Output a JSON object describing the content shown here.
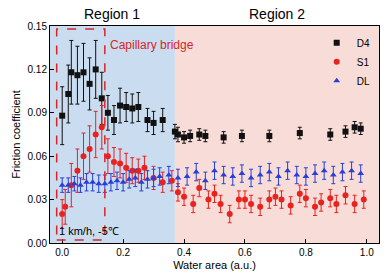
{
  "chart_data": {
    "type": "scatter",
    "x_label": "Water area (a.u.)",
    "y_label": "Friction coefficient",
    "xlim": [
      -0.04,
      1.04
    ],
    "ylim": [
      0,
      0.15
    ],
    "xticks": [
      {
        "value": 0,
        "label": "0.0"
      },
      0.2,
      0.4,
      0.6,
      0.8,
      {
        "value": 1,
        "label": "1.0"
      }
    ],
    "yticks": [
      {
        "value": 0,
        "label": "0.00"
      },
      {
        "value": 0.03,
        "label": "0.03"
      },
      {
        "value": 0.06,
        "label": "0.06"
      },
      {
        "value": 0.09,
        "label": "0.09"
      },
      {
        "value": 0.12,
        "label": "0.12"
      },
      {
        "value": 0.15,
        "label": "0.15"
      }
    ],
    "legend": "upper right",
    "grid": false,
    "regions": [
      {
        "label": "Region 1",
        "x0": -0.04,
        "x1": 0.37,
        "color": "#c9dcf0"
      },
      {
        "label": "Region 2",
        "x0": 0.37,
        "x1": 1.04,
        "color": "#f7dcd8"
      }
    ],
    "highlight": {
      "label": "Capillary bridge",
      "x0": -0.018,
      "x1": 0.14,
      "y0": 0.002,
      "y1": 0.148,
      "color": "#d62728"
    },
    "note": "1 km/h, -5℃",
    "series": [
      {
        "name": "D4",
        "color": "#111111",
        "marker": "square",
        "x": [
          0.0,
          0.02,
          0.03,
          0.05,
          0.07,
          0.09,
          0.11,
          0.13,
          0.15,
          0.17,
          0.19,
          0.21,
          0.23,
          0.25,
          0.28,
          0.3,
          0.33,
          0.37,
          0.38,
          0.4,
          0.42,
          0.45,
          0.47,
          0.53,
          0.59,
          0.68,
          0.78,
          0.88,
          0.93,
          0.96,
          0.98
        ],
        "values": [
          0.088,
          0.103,
          0.118,
          0.116,
          0.118,
          0.11,
          0.12,
          0.1,
          0.09,
          0.085,
          0.095,
          0.094,
          0.093,
          0.094,
          0.085,
          0.083,
          0.085,
          0.077,
          0.075,
          0.073,
          0.074,
          0.075,
          0.074,
          0.073,
          0.074,
          0.074,
          0.076,
          0.075,
          0.077,
          0.08,
          0.079
        ],
        "error": [
          0.02,
          0.02,
          0.022,
          0.02,
          0.02,
          0.018,
          0.02,
          0.018,
          0.012,
          0.01,
          0.012,
          0.01,
          0.01,
          0.01,
          0.008,
          0.008,
          0.008,
          0.005,
          0.005,
          0.004,
          0.004,
          0.004,
          0.004,
          0.004,
          0.004,
          0.004,
          0.004,
          0.004,
          0.004,
          0.004,
          0.004
        ]
      },
      {
        "name": "S1",
        "color": "#e8231f",
        "marker": "circle",
        "x": [
          0.0,
          0.01,
          0.03,
          0.05,
          0.07,
          0.09,
          0.11,
          0.13,
          0.15,
          0.17,
          0.19,
          0.21,
          0.23,
          0.25,
          0.27,
          0.3,
          0.33,
          0.36,
          0.38,
          0.4,
          0.43,
          0.45,
          0.48,
          0.5,
          0.52,
          0.55,
          0.58,
          0.6,
          0.62,
          0.65,
          0.68,
          0.7,
          0.72,
          0.75,
          0.78,
          0.8,
          0.83,
          0.85,
          0.88,
          0.9,
          0.93,
          0.96,
          0.99
        ],
        "values": [
          0.02,
          0.025,
          0.04,
          0.05,
          0.06,
          0.065,
          0.075,
          0.08,
          0.06,
          0.056,
          0.055,
          0.052,
          0.05,
          0.05,
          0.052,
          0.045,
          0.042,
          0.043,
          0.035,
          0.032,
          0.027,
          0.038,
          0.03,
          0.034,
          0.027,
          0.02,
          0.03,
          0.03,
          0.027,
          0.025,
          0.03,
          0.032,
          0.03,
          0.026,
          0.034,
          0.031,
          0.025,
          0.028,
          0.031,
          0.027,
          0.033,
          0.027,
          0.03
        ],
        "error": [
          0.01,
          0.012,
          0.015,
          0.015,
          0.016,
          0.016,
          0.016,
          0.015,
          0.012,
          0.01,
          0.01,
          0.01,
          0.009,
          0.008,
          0.008,
          0.008,
          0.007,
          0.007,
          0.006,
          0.006,
          0.006,
          0.006,
          0.006,
          0.006,
          0.006,
          0.006,
          0.006,
          0.006,
          0.006,
          0.006,
          0.006,
          0.006,
          0.006,
          0.006,
          0.006,
          0.006,
          0.006,
          0.006,
          0.006,
          0.006,
          0.006,
          0.006,
          0.006
        ]
      },
      {
        "name": "DL",
        "color": "#2b3fd6",
        "marker": "triangle-up",
        "x": [
          0.0,
          0.02,
          0.04,
          0.06,
          0.08,
          0.1,
          0.12,
          0.14,
          0.16,
          0.18,
          0.2,
          0.22,
          0.24,
          0.26,
          0.28,
          0.3,
          0.32,
          0.35,
          0.38,
          0.41,
          0.44,
          0.47,
          0.5,
          0.53,
          0.56,
          0.59,
          0.62,
          0.65,
          0.68,
          0.71,
          0.74,
          0.77,
          0.8,
          0.83,
          0.86,
          0.89,
          0.92,
          0.95,
          0.98
        ],
        "values": [
          0.04,
          0.04,
          0.041,
          0.04,
          0.042,
          0.042,
          0.041,
          0.041,
          0.042,
          0.043,
          0.042,
          0.044,
          0.045,
          0.042,
          0.044,
          0.045,
          0.046,
          0.047,
          0.045,
          0.046,
          0.049,
          0.043,
          0.05,
          0.047,
          0.046,
          0.048,
          0.045,
          0.047,
          0.049,
          0.046,
          0.05,
          0.047,
          0.046,
          0.048,
          0.05,
          0.047,
          0.049,
          0.05,
          0.048
        ],
        "error": [
          0.005,
          0.005,
          0.005,
          0.005,
          0.006,
          0.006,
          0.006,
          0.006,
          0.006,
          0.006,
          0.006,
          0.006,
          0.006,
          0.006,
          0.006,
          0.006,
          0.006,
          0.006,
          0.006,
          0.006,
          0.006,
          0.006,
          0.006,
          0.006,
          0.006,
          0.006,
          0.006,
          0.006,
          0.006,
          0.006,
          0.006,
          0.006,
          0.006,
          0.006,
          0.006,
          0.006,
          0.006,
          0.006,
          0.006
        ]
      }
    ]
  }
}
